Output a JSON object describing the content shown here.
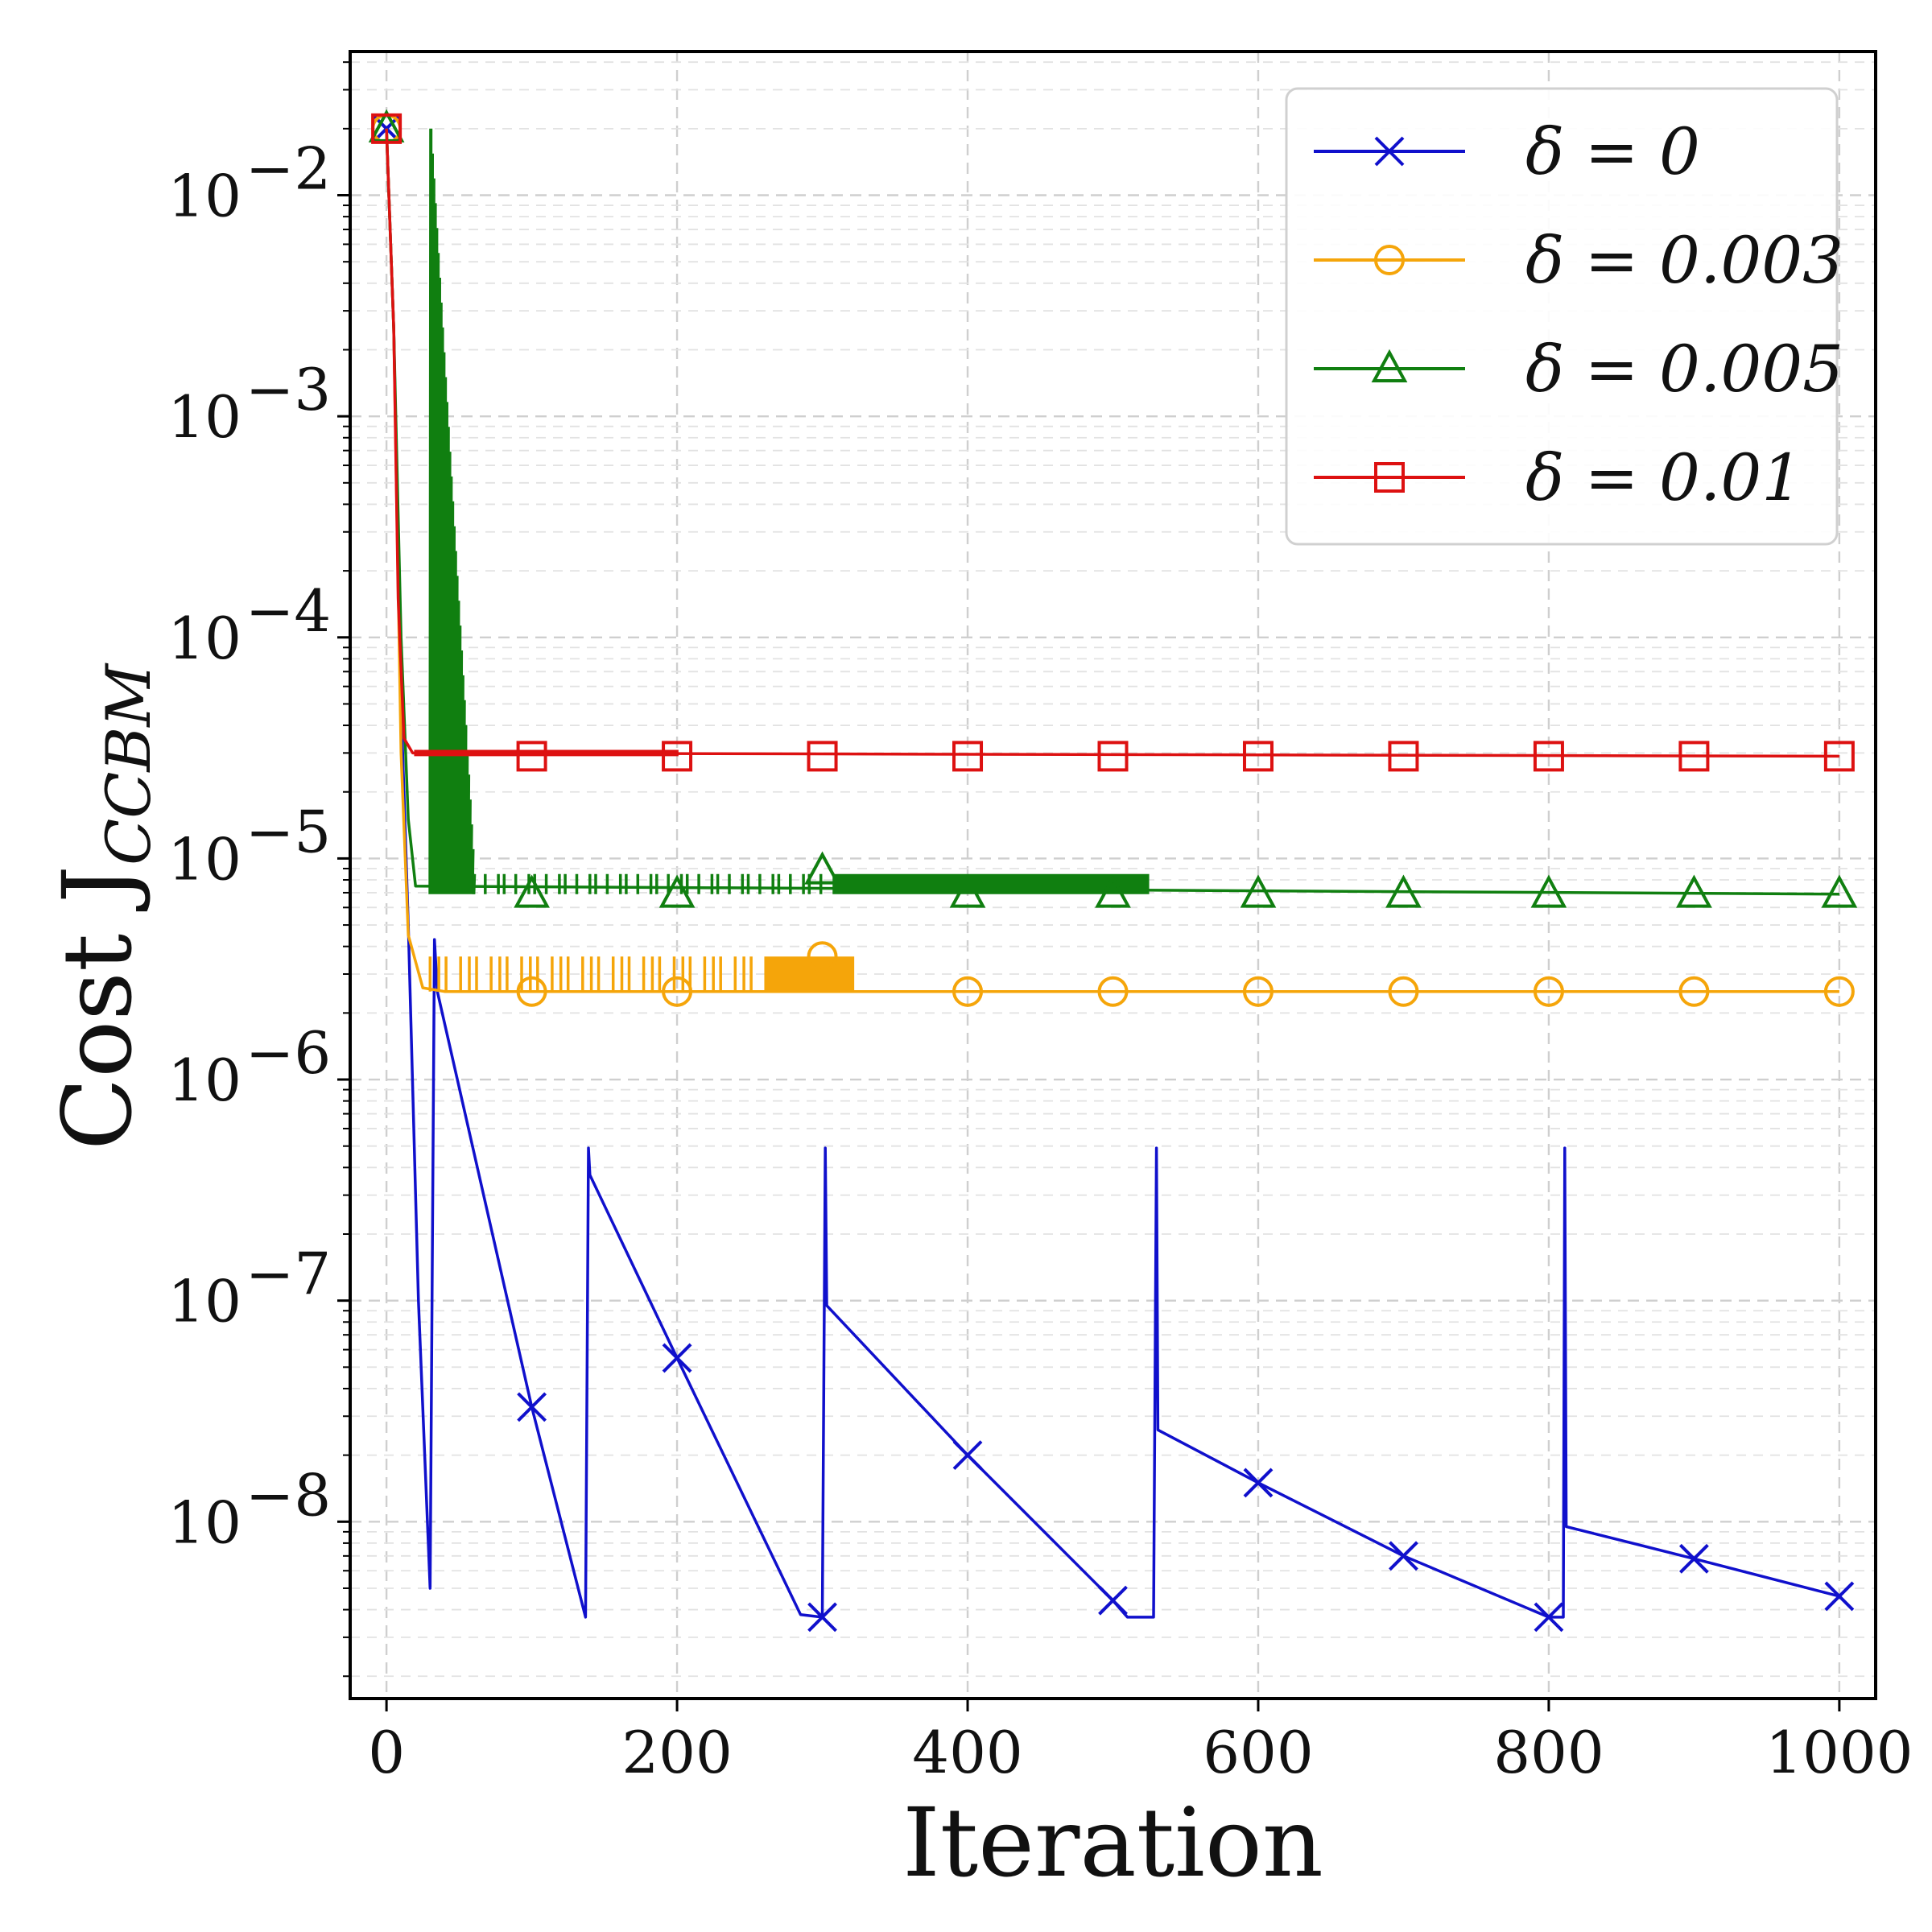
{
  "chart_data": {
    "type": "line",
    "title": "",
    "xlabel": "Iteration",
    "ylabel": {
      "base": "Cost J",
      "subscript": "CCBM"
    },
    "xlim": [
      -25,
      1025
    ],
    "ylim_exponent": [
      -8.8,
      -1.35
    ],
    "yscale": "log",
    "grid": true,
    "legend_position": "top-right",
    "x_ticks": [
      {
        "value": 0,
        "label": "0"
      },
      {
        "value": 200,
        "label": "200"
      },
      {
        "value": 400,
        "label": "400"
      },
      {
        "value": 600,
        "label": "600"
      },
      {
        "value": 800,
        "label": "800"
      },
      {
        "value": 1000,
        "label": "1000"
      }
    ],
    "y_ticks": [
      {
        "exponent": -2,
        "base": "10",
        "power": "−2"
      },
      {
        "exponent": -3,
        "base": "10",
        "power": "−3"
      },
      {
        "exponent": -4,
        "base": "10",
        "power": "−4"
      },
      {
        "exponent": -5,
        "base": "10",
        "power": "−5"
      },
      {
        "exponent": -6,
        "base": "10",
        "power": "−6"
      },
      {
        "exponent": -7,
        "base": "10",
        "power": "−7"
      },
      {
        "exponent": -8,
        "base": "10",
        "power": "−8"
      }
    ],
    "series": [
      {
        "name": "δ = 0",
        "color": "#1010cc",
        "marker": "x",
        "points": [
          [
            0,
            0.02
          ],
          [
            5,
            0.0025
          ],
          [
            10,
            5e-05
          ],
          [
            15,
            5e-06
          ],
          [
            22,
            1e-07
          ],
          [
            30,
            5e-09
          ],
          [
            33,
            4.3e-06
          ],
          [
            35,
            2.5e-06
          ],
          [
            100,
            3.3e-08
          ],
          [
            137,
            3.7e-09
          ],
          [
            139,
            4.9e-07
          ],
          [
            140,
            3.7e-07
          ],
          [
            200,
            5.5e-08
          ],
          [
            285,
            3.8e-09
          ],
          [
            300,
            3.7e-09
          ],
          [
            302,
            4.9e-07
          ],
          [
            303,
            9.5e-08
          ],
          [
            400,
            2e-08
          ],
          [
            500,
            4.4e-09
          ],
          [
            510,
            3.7e-09
          ],
          [
            528,
            3.7e-09
          ],
          [
            530,
            4.9e-07
          ],
          [
            531,
            2.6e-08
          ],
          [
            600,
            1.5e-08
          ],
          [
            700,
            7e-09
          ],
          [
            800,
            3.7e-09
          ],
          [
            810,
            3.7e-09
          ],
          [
            811,
            4.9e-07
          ],
          [
            812,
            9.5e-09
          ],
          [
            900,
            6.8e-09
          ],
          [
            1000,
            4.6e-09
          ]
        ],
        "markers_at": [
          0,
          100,
          200,
          300,
          400,
          500,
          600,
          700,
          800,
          900,
          1000
        ]
      },
      {
        "name": "δ = 0.003",
        "color": "#f5a50a",
        "marker": "circle",
        "points": [
          [
            0,
            0.02
          ],
          [
            5,
            0.0025
          ],
          [
            10,
            3e-05
          ],
          [
            15,
            4.5e-06
          ],
          [
            25,
            2.6e-06
          ],
          [
            40,
            2.5e-06
          ],
          [
            1000,
            2.5e-06
          ]
        ],
        "oscillation": {
          "x_start": 30,
          "x_end": 322,
          "low": 2.5e-06,
          "high": 3.6e-06,
          "dense_after": 255
        },
        "markers": [
          [
            0,
            0.02
          ],
          [
            100,
            2.5e-06
          ],
          [
            200,
            2.5e-06
          ],
          [
            300,
            3.6e-06
          ],
          [
            400,
            2.5e-06
          ],
          [
            500,
            2.5e-06
          ],
          [
            600,
            2.5e-06
          ],
          [
            700,
            2.5e-06
          ],
          [
            800,
            2.5e-06
          ],
          [
            900,
            2.5e-06
          ],
          [
            1000,
            2.5e-06
          ]
        ]
      },
      {
        "name": "δ = 0.005",
        "color": "#107f10",
        "marker": "triangle",
        "points": [
          [
            0,
            0.02
          ],
          [
            5,
            0.0025
          ],
          [
            10,
            0.0001
          ],
          [
            15,
            1.5e-05
          ],
          [
            20,
            7.5e-06
          ],
          [
            1000,
            6.9e-06
          ]
        ],
        "spike": {
          "x_start": 30,
          "x_end": 60,
          "peak": 0.02
        },
        "oscillation": {
          "x_start": 60,
          "x_end": 525,
          "low": 6.9e-06,
          "high": 8.5e-06,
          "dense_after": 300
        },
        "markers": [
          [
            0,
            0.02
          ],
          [
            100,
            6.9e-06
          ],
          [
            200,
            6.9e-06
          ],
          [
            300,
            8.8e-06
          ],
          [
            400,
            6.9e-06
          ],
          [
            500,
            6.9e-06
          ],
          [
            600,
            6.9e-06
          ],
          [
            700,
            6.9e-06
          ],
          [
            800,
            6.9e-06
          ],
          [
            900,
            6.9e-06
          ],
          [
            1000,
            6.9e-06
          ]
        ]
      },
      {
        "name": "δ = 0.01",
        "color": "#dd1111",
        "marker": "square",
        "points": [
          [
            0,
            0.02
          ],
          [
            5,
            0.0025
          ],
          [
            8,
            0.00015
          ],
          [
            12,
            3.5e-05
          ],
          [
            18,
            3e-05
          ],
          [
            1000,
            2.9e-05
          ]
        ],
        "oscillation": {
          "x_start": 20,
          "x_end": 200,
          "low": 2.9e-05,
          "high": 3.1e-05,
          "dense_after": 20
        },
        "markers": [
          [
            0,
            0.02
          ],
          [
            100,
            2.9e-05
          ],
          [
            200,
            2.9e-05
          ],
          [
            300,
            2.9e-05
          ],
          [
            400,
            2.9e-05
          ],
          [
            500,
            2.9e-05
          ],
          [
            600,
            2.9e-05
          ],
          [
            700,
            2.9e-05
          ],
          [
            800,
            2.9e-05
          ],
          [
            900,
            2.9e-05
          ],
          [
            1000,
            2.9e-05
          ]
        ]
      }
    ],
    "legend": [
      {
        "label": "δ = 0",
        "color": "#1010cc",
        "marker": "x"
      },
      {
        "label": "δ = 0.003",
        "color": "#f5a50a",
        "marker": "circle"
      },
      {
        "label": "δ = 0.005",
        "color": "#107f10",
        "marker": "triangle"
      },
      {
        "label": "δ = 0.01",
        "color": "#dd1111",
        "marker": "square"
      }
    ]
  }
}
